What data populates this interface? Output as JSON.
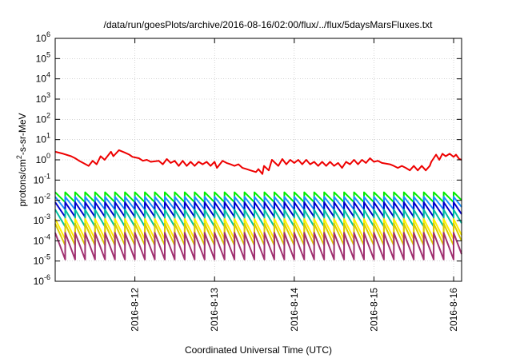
{
  "chart_data": {
    "type": "line",
    "title": "/data/run/goesPlots/archive/2016-08-16/02:00/flux/../flux/5daysMarsFluxes.txt",
    "xlabel": "Coordinated Universal Time (UTC)",
    "ylabel_main": "protons/cm",
    "ylabel_sup": "2",
    "ylabel_rest": "-s-sr-MeV",
    "yscale": "log",
    "ylim_exp": [
      -6,
      6
    ],
    "ytick_exponents": [
      -6,
      -5,
      -4,
      -3,
      -2,
      -1,
      0,
      1,
      2,
      3,
      4,
      5,
      6
    ],
    "ytick_base": "10",
    "xlim_days": [
      11.0,
      16.1
    ],
    "xticks": [
      {
        "day": 12,
        "label": "2016-8-12"
      },
      {
        "day": 13,
        "label": "2016-8-13"
      },
      {
        "day": 14,
        "label": "2016-8-14"
      },
      {
        "day": 15,
        "label": "2016-8-15"
      },
      {
        "day": 16,
        "label": "2016-8-16"
      }
    ],
    "grid": true,
    "series": [
      {
        "color": "#ee0000",
        "x": [
          11.0,
          11.1,
          11.2,
          11.25,
          11.3,
          11.35,
          11.42,
          11.47,
          11.52,
          11.57,
          11.62,
          11.7,
          11.73,
          11.8,
          11.87,
          11.93,
          11.97,
          12.05,
          12.1,
          12.15,
          12.2,
          12.3,
          12.35,
          12.4,
          12.45,
          12.5,
          12.55,
          12.6,
          12.65,
          12.7,
          12.75,
          12.8,
          12.85,
          12.9,
          12.95,
          13.0,
          13.03,
          13.1,
          13.15,
          13.2,
          13.25,
          13.3,
          13.35,
          13.4,
          13.45,
          13.52,
          13.55,
          13.6,
          13.62,
          13.68,
          13.72,
          13.8,
          13.85,
          13.9,
          13.95,
          14.0,
          14.05,
          14.1,
          14.15,
          14.2,
          14.25,
          14.3,
          14.35,
          14.4,
          14.45,
          14.5,
          14.55,
          14.6,
          14.65,
          14.7,
          14.75,
          14.8,
          14.85,
          14.9,
          14.95,
          15.0,
          15.05,
          15.1,
          15.2,
          15.25,
          15.3,
          15.35,
          15.4,
          15.45,
          15.5,
          15.55,
          15.6,
          15.65,
          15.7,
          15.72,
          15.78,
          15.82,
          15.86,
          15.9,
          15.95,
          16.0,
          16.03,
          16.07,
          16.1
        ],
        "y": [
          2.5,
          2.0,
          1.5,
          1.2,
          0.9,
          0.7,
          0.5,
          0.9,
          0.6,
          1.5,
          1.0,
          2.5,
          1.5,
          3.0,
          2.3,
          1.8,
          1.4,
          1.2,
          0.9,
          1.0,
          0.8,
          0.9,
          0.6,
          1.1,
          0.7,
          0.9,
          0.5,
          0.9,
          0.5,
          0.8,
          0.5,
          0.8,
          0.6,
          0.8,
          0.5,
          0.8,
          0.4,
          0.9,
          0.7,
          0.6,
          0.5,
          0.6,
          0.4,
          0.35,
          0.3,
          0.25,
          0.35,
          0.2,
          0.5,
          0.3,
          1.0,
          0.5,
          1.1,
          0.6,
          1.0,
          0.7,
          1.0,
          0.6,
          1.0,
          0.6,
          0.8,
          0.5,
          0.8,
          0.5,
          0.8,
          0.5,
          0.7,
          0.4,
          0.8,
          0.6,
          1.0,
          0.6,
          1.0,
          0.7,
          1.2,
          0.8,
          0.9,
          0.7,
          0.6,
          0.5,
          0.4,
          0.5,
          0.4,
          0.3,
          0.5,
          0.3,
          0.5,
          0.3,
          0.5,
          0.8,
          1.8,
          1.0,
          2.0,
          1.5,
          2.0,
          1.4,
          1.8,
          1.1,
          1.0
        ]
      },
      {
        "color": "#00ee00",
        "sawtooth": {
          "period": 0.125,
          "start": 11.0,
          "end": 16.1,
          "top": 0.025,
          "bottom": 0.008
        }
      },
      {
        "color": "#1a8fff",
        "sawtooth": {
          "period": 0.125,
          "start": 11.0,
          "end": 16.1,
          "top": 0.015,
          "bottom": 0.0035
        }
      },
      {
        "color": "#0000cc",
        "sawtooth": {
          "period": 0.125,
          "start": 11.0,
          "end": 16.1,
          "top": 0.008,
          "bottom": 0.0015
        }
      },
      {
        "color": "#00c0a0",
        "sawtooth": {
          "period": 0.125,
          "start": 11.0,
          "end": 16.1,
          "top": 0.0035,
          "bottom": 0.0005
        }
      },
      {
        "color": "#ffee00",
        "sawtooth": {
          "period": 0.125,
          "start": 11.0,
          "end": 16.1,
          "top": 0.0012,
          "bottom": 0.00012
        }
      },
      {
        "color": "#d8c800",
        "sawtooth": {
          "period": 0.125,
          "start": 11.0,
          "end": 16.1,
          "top": 0.0007,
          "bottom": 6e-05
        }
      },
      {
        "color": "#a03070",
        "sawtooth": {
          "period": 0.125,
          "start": 11.0,
          "end": 16.1,
          "top": 0.00025,
          "bottom": 1.2e-05
        }
      }
    ]
  }
}
